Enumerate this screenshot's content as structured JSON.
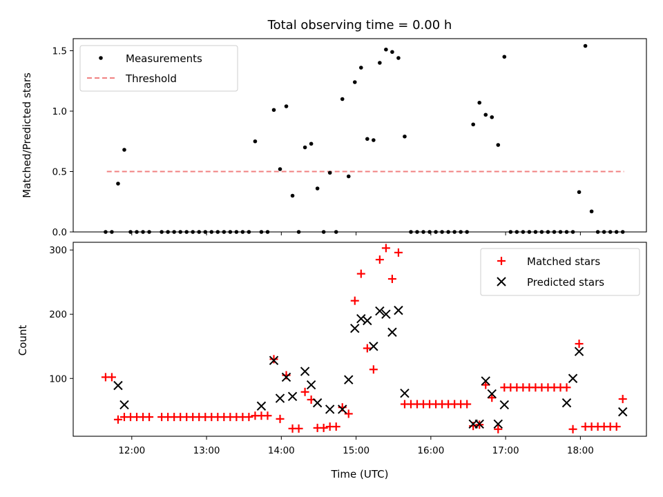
{
  "chart_data": [
    {
      "type": "scatter",
      "title": "Total observing time = 0.00 h",
      "xlabel": "",
      "ylabel": "Matched/Predicted stars",
      "xlim": [
        "11:13",
        "18:53"
      ],
      "ylim": [
        0,
        1.6
      ],
      "yticks": [
        "0.0",
        "0.5",
        "1.0",
        "1.5"
      ],
      "legend": {
        "position": "top-left",
        "entries": [
          "Measurements",
          "Threshold"
        ]
      },
      "threshold": {
        "name": "Threshold",
        "value": 0.5,
        "x": [
          "11:40",
          "18:35"
        ],
        "color": "#f08080",
        "style": "dashed"
      },
      "series": [
        {
          "name": "Measurements",
          "color": "#000000",
          "marker": "dot",
          "x": [
            "11:39",
            "11:44",
            "11:49",
            "11:54",
            "11:59",
            "12:04",
            "12:09",
            "12:14",
            "12:24",
            "12:29",
            "12:34",
            "12:39",
            "12:44",
            "12:49",
            "12:54",
            "12:59",
            "13:04",
            "13:09",
            "13:14",
            "13:19",
            "13:24",
            "13:29",
            "13:34",
            "13:39",
            "13:44",
            "13:49",
            "13:54",
            "13:59",
            "14:04",
            "14:09",
            "14:14",
            "14:19",
            "14:24",
            "14:29",
            "14:34",
            "14:39",
            "14:44",
            "14:49",
            "14:54",
            "14:59",
            "15:04",
            "15:09",
            "15:14",
            "15:19",
            "15:24",
            "15:29",
            "15:34",
            "15:39",
            "15:44",
            "15:49",
            "15:54",
            "15:59",
            "16:04",
            "16:09",
            "16:14",
            "16:19",
            "16:24",
            "16:29",
            "16:34",
            "16:39",
            "16:44",
            "16:49",
            "16:54",
            "16:59",
            "17:04",
            "17:09",
            "17:14",
            "17:19",
            "17:24",
            "17:29",
            "17:34",
            "17:39",
            "17:44",
            "17:49",
            "17:54",
            "17:59",
            "18:04",
            "18:09",
            "18:14",
            "18:19",
            "18:24",
            "18:29",
            "18:34"
          ],
          "y": [
            0,
            0,
            0.4,
            0.68,
            0,
            0,
            0,
            0,
            0,
            0,
            0,
            0,
            0,
            0,
            0,
            0,
            0,
            0,
            0,
            0,
            0,
            0,
            0,
            0.75,
            0,
            0,
            1.01,
            0.52,
            1.04,
            0.3,
            0,
            0.7,
            0.73,
            0.36,
            0,
            0.49,
            0,
            1.1,
            0.46,
            1.24,
            1.36,
            0.77,
            0.76,
            1.4,
            1.51,
            1.49,
            1.44,
            0.79,
            0,
            0,
            0,
            0,
            0,
            0,
            0,
            0,
            0,
            0,
            0.89,
            1.07,
            0.97,
            0.95,
            0.72,
            1.45,
            0,
            0,
            0,
            0,
            0,
            0,
            0,
            0,
            0,
            0,
            0,
            0.33,
            1.54,
            0.17,
            0,
            0,
            0,
            0,
            0
          ]
        }
      ]
    },
    {
      "type": "scatter",
      "title": "",
      "xlabel": "Time (UTC)",
      "ylabel": "Count",
      "xlim": [
        "11:13",
        "18:53"
      ],
      "ylim": [
        10,
        312
      ],
      "xticks": [
        "12:00",
        "13:00",
        "14:00",
        "15:00",
        "16:00",
        "17:00",
        "18:00"
      ],
      "yticks": [
        "100",
        "200",
        "300"
      ],
      "legend": {
        "position": "top-right",
        "entries": [
          "Matched stars",
          "Predicted stars"
        ]
      },
      "series": [
        {
          "name": "Matched stars",
          "color": "#ff0000",
          "marker": "plus",
          "x": [
            "11:39",
            "11:44",
            "11:49",
            "11:54",
            "11:59",
            "12:04",
            "12:09",
            "12:14",
            "12:24",
            "12:29",
            "12:34",
            "12:39",
            "12:44",
            "12:49",
            "12:54",
            "12:59",
            "13:04",
            "13:09",
            "13:14",
            "13:19",
            "13:24",
            "13:29",
            "13:34",
            "13:39",
            "13:44",
            "13:49",
            "13:54",
            "13:59",
            "14:04",
            "14:09",
            "14:14",
            "14:19",
            "14:24",
            "14:29",
            "14:34",
            "14:39",
            "14:44",
            "14:49",
            "14:54",
            "14:59",
            "15:04",
            "15:09",
            "15:14",
            "15:19",
            "15:24",
            "15:29",
            "15:34",
            "15:39",
            "15:44",
            "15:49",
            "15:54",
            "15:59",
            "16:04",
            "16:09",
            "16:14",
            "16:19",
            "16:24",
            "16:29",
            "16:34",
            "16:39",
            "16:44",
            "16:49",
            "16:54",
            "16:59",
            "17:04",
            "17:09",
            "17:14",
            "17:19",
            "17:24",
            "17:29",
            "17:34",
            "17:39",
            "17:44",
            "17:49",
            "17:54",
            "17:59",
            "18:04",
            "18:09",
            "18:14",
            "18:19",
            "18:24",
            "18:29",
            "18:34"
          ],
          "y": [
            102,
            102,
            36,
            40,
            40,
            40,
            40,
            40,
            40,
            40,
            40,
            40,
            40,
            40,
            40,
            40,
            40,
            40,
            40,
            40,
            40,
            40,
            40,
            42,
            42,
            42,
            130,
            37,
            105,
            22,
            22,
            79,
            67,
            23,
            23,
            25,
            25,
            55,
            45,
            221,
            263,
            147,
            114,
            285,
            303,
            255,
            296,
            60,
            60,
            60,
            60,
            60,
            60,
            60,
            60,
            60,
            60,
            60,
            26,
            28,
            90,
            70,
            21,
            86,
            86,
            86,
            86,
            86,
            86,
            86,
            86,
            86,
            86,
            86,
            21,
            154,
            25,
            25,
            25,
            25,
            25,
            25,
            68
          ]
        },
        {
          "name": "Predicted stars",
          "color": "#000000",
          "marker": "cross",
          "x": [
            "11:49",
            "11:54",
            "13:44",
            "13:54",
            "13:59",
            "14:04",
            "14:09",
            "14:19",
            "14:24",
            "14:29",
            "14:39",
            "14:49",
            "14:54",
            "14:59",
            "15:04",
            "15:09",
            "15:14",
            "15:19",
            "15:24",
            "15:29",
            "15:34",
            "15:39",
            "16:34",
            "16:39",
            "16:44",
            "16:49",
            "16:54",
            "16:59",
            "17:49",
            "17:54",
            "17:59",
            "18:34"
          ],
          "y": [
            89,
            59,
            57,
            128,
            69,
            102,
            72,
            111,
            90,
            62,
            52,
            52,
            98,
            178,
            193,
            190,
            150,
            205,
            200,
            172,
            206,
            77,
            29,
            29,
            96,
            76,
            29,
            59,
            62,
            100,
            142,
            48
          ]
        }
      ]
    }
  ]
}
